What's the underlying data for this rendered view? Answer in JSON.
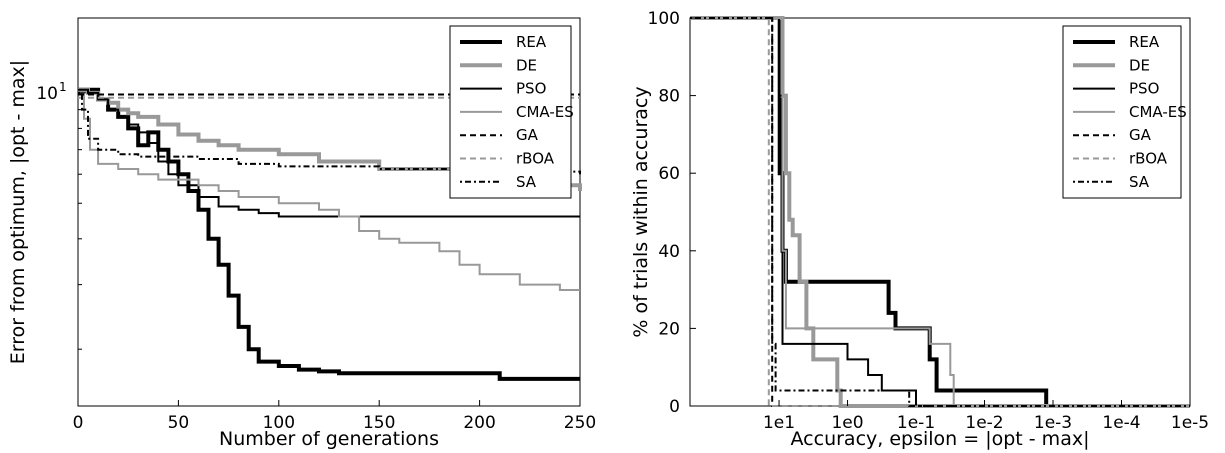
{
  "legend_entries": [
    "REA",
    "DE",
    "PSO",
    "CMA-ES",
    "GA",
    "rBOA",
    "SA"
  ],
  "series_styles": [
    {
      "name": "REA",
      "color": "#000000",
      "width": 4,
      "dash": ""
    },
    {
      "name": "DE",
      "color": "#999999",
      "width": 4,
      "dash": ""
    },
    {
      "name": "PSO",
      "color": "#000000",
      "width": 2,
      "dash": ""
    },
    {
      "name": "CMA-ES",
      "color": "#999999",
      "width": 2,
      "dash": ""
    },
    {
      "name": "GA",
      "color": "#000000",
      "width": 2,
      "dash": "6,4"
    },
    {
      "name": "rBOA",
      "color": "#999999",
      "width": 2,
      "dash": "6,4"
    },
    {
      "name": "SA",
      "color": "#000000",
      "width": 2,
      "dash": "2,3,6,3"
    }
  ],
  "chart_data": [
    {
      "type": "line",
      "ylog": true,
      "xlabel": "Number of generations",
      "ylabel": "Error from optimum, |opt - max|",
      "xlim": [
        0,
        250
      ],
      "ylim": [
        1.4,
        16
      ],
      "xticks": [
        0,
        50,
        100,
        150,
        200,
        250
      ],
      "yticks": [
        {
          "value": 10,
          "label": "10",
          "sup": "1"
        }
      ],
      "legend_position": "top-right",
      "series": [
        {
          "name": "REA",
          "x": [
            0,
            5,
            10,
            15,
            20,
            25,
            30,
            35,
            40,
            45,
            50,
            55,
            60,
            65,
            70,
            75,
            80,
            85,
            90,
            100,
            110,
            120,
            130,
            150,
            180,
            210,
            250
          ],
          "y": [
            10.2,
            10.2,
            9.6,
            9.0,
            8.6,
            8.0,
            7.2,
            7.8,
            7.0,
            6.5,
            6.0,
            5.4,
            4.8,
            4.0,
            3.4,
            2.8,
            2.3,
            2.0,
            1.85,
            1.8,
            1.76,
            1.74,
            1.72,
            1.72,
            1.72,
            1.66,
            1.66
          ]
        },
        {
          "name": "DE",
          "x": [
            0,
            5,
            10,
            15,
            20,
            25,
            30,
            40,
            50,
            60,
            70,
            80,
            100,
            120,
            150,
            200,
            230,
            250
          ],
          "y": [
            10.2,
            10.0,
            9.6,
            9.4,
            9.0,
            8.8,
            8.6,
            8.2,
            7.7,
            7.4,
            7.2,
            7.0,
            6.8,
            6.5,
            6.2,
            6.0,
            5.6,
            5.4
          ]
        },
        {
          "name": "PSO",
          "x": [
            0,
            5,
            10,
            15,
            20,
            25,
            30,
            35,
            40,
            45,
            50,
            60,
            70,
            80,
            90,
            100,
            150,
            200,
            250
          ],
          "y": [
            10.2,
            10.0,
            9.6,
            9.0,
            8.6,
            8.2,
            7.8,
            7.3,
            6.5,
            6.0,
            5.6,
            5.2,
            4.9,
            4.8,
            4.7,
            4.6,
            4.6,
            4.6,
            4.6
          ]
        },
        {
          "name": "CMA-ES",
          "x": [
            0,
            3,
            6,
            10,
            20,
            30,
            40,
            60,
            70,
            80,
            100,
            120,
            130,
            140,
            150,
            160,
            180,
            190,
            200,
            220,
            240,
            250
          ],
          "y": [
            10.0,
            8.5,
            7.0,
            6.4,
            6.2,
            6.0,
            5.8,
            5.6,
            5.4,
            5.2,
            5.0,
            4.8,
            4.6,
            4.2,
            4.0,
            3.9,
            3.7,
            3.4,
            3.2,
            3.0,
            2.9,
            2.9
          ]
        },
        {
          "name": "GA",
          "x": [
            0,
            50,
            100,
            150,
            200,
            250
          ],
          "y": [
            9.9,
            9.9,
            9.9,
            9.9,
            9.9,
            9.9
          ]
        },
        {
          "name": "rBOA",
          "x": [
            0,
            50,
            100,
            150,
            200,
            250
          ],
          "y": [
            9.7,
            9.7,
            9.7,
            9.7,
            9.7,
            9.7
          ]
        },
        {
          "name": "SA",
          "x": [
            0,
            2,
            5,
            10,
            20,
            30,
            60,
            70,
            80,
            100,
            150,
            200,
            250
          ],
          "y": [
            10.0,
            9.0,
            7.5,
            7.0,
            6.8,
            6.7,
            6.6,
            6.6,
            6.4,
            6.3,
            6.2,
            6.1,
            6.0
          ]
        }
      ]
    },
    {
      "type": "line",
      "xlabel": "Accuracy, epsilon = |opt - max|",
      "ylabel": "% of trials within accuracy",
      "x_scale": "log10 accuracy, decreasing left to right",
      "xlim_log10": [
        2.3,
        -5
      ],
      "ylim": [
        0,
        100
      ],
      "xtick_labels": [
        {
          "label": "1e1",
          "value": 1
        },
        {
          "label": "1e0",
          "value": 0
        },
        {
          "label": "1e-1",
          "value": -1
        },
        {
          "label": "1e-2",
          "value": -2
        },
        {
          "label": "1e-3",
          "value": -3
        },
        {
          "label": "1e-4",
          "value": -4
        },
        {
          "label": "1e-5",
          "value": -5
        }
      ],
      "yticks": [
        0,
        20,
        40,
        60,
        80,
        100
      ],
      "legend_position": "top-right",
      "series": [
        {
          "name": "REA",
          "x_log10": [
            2.3,
            1.0,
            0.99,
            0.95,
            0.9,
            0.8,
            -0.5,
            -0.6,
            -0.7,
            -1.1,
            -1.2,
            -1.3,
            -1.5,
            -1.6,
            -1.8,
            -1.9,
            -2.8,
            -2.9,
            -3.0,
            -5.0
          ],
          "y": [
            100,
            100,
            60,
            40,
            32,
            32,
            32,
            24,
            20,
            20,
            12,
            4,
            4,
            4,
            4,
            4,
            4,
            0,
            0,
            0
          ]
        },
        {
          "name": "DE",
          "x_log10": [
            2.3,
            1.0,
            0.95,
            0.9,
            0.85,
            0.8,
            0.7,
            0.6,
            0.5,
            0.2,
            0.15,
            0.1,
            -5.0
          ],
          "y": [
            100,
            100,
            80,
            60,
            48,
            44,
            32,
            20,
            12,
            12,
            4,
            0,
            0
          ]
        },
        {
          "name": "PSO",
          "x_log10": [
            2.3,
            1.05,
            1.0,
            0.95,
            0.8,
            0.5,
            0.0,
            -0.3,
            -0.5,
            -0.7,
            -1.0,
            -1.3,
            -1.5,
            -5.0
          ],
          "y": [
            100,
            100,
            80,
            16,
            16,
            16,
            12,
            8,
            4,
            4,
            0,
            0,
            0,
            0
          ]
        },
        {
          "name": "CMA-ES",
          "x_log10": [
            2.3,
            1.0,
            0.95,
            0.9,
            -0.8,
            -1.0,
            -1.2,
            -1.4,
            -1.5,
            -1.55,
            -5.0
          ],
          "y": [
            100,
            100,
            40,
            20,
            20,
            20,
            16,
            16,
            8,
            0,
            0
          ]
        },
        {
          "name": "GA",
          "x_log10": [
            2.3,
            1.15,
            1.1,
            -5.0
          ],
          "y": [
            100,
            100,
            0,
            0
          ]
        },
        {
          "name": "rBOA",
          "x_log10": [
            2.3,
            1.2,
            1.15,
            -5.0
          ],
          "y": [
            100,
            100,
            0,
            0
          ]
        },
        {
          "name": "SA",
          "x_log10": [
            2.3,
            1.15,
            1.1,
            1.05,
            1.0,
            -0.8,
            -0.9,
            -5.0
          ],
          "y": [
            100,
            100,
            16,
            4,
            4,
            4,
            0,
            0
          ]
        }
      ]
    }
  ]
}
